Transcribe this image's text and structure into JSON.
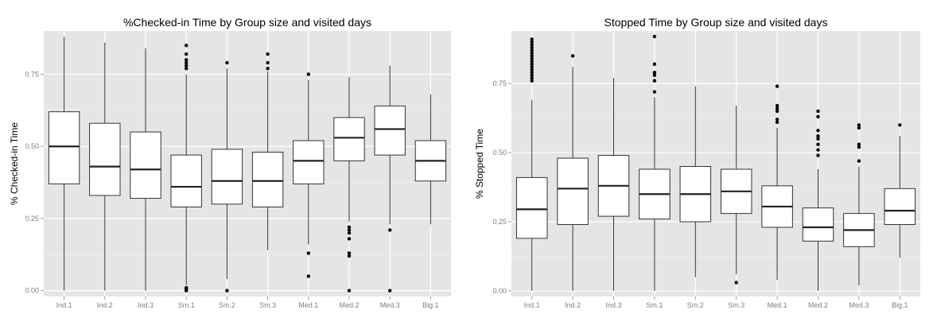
{
  "chart_data": [
    {
      "type": "box",
      "title": "%Checked-in Time by Group size and visited days",
      "xlabel": "",
      "ylabel": "% Checked-in Time",
      "ylim": [
        -0.02,
        0.9
      ],
      "yticks": [
        "0.00",
        "0.25",
        "0.50",
        "0.75"
      ],
      "yticks_values": [
        0,
        0.25,
        0.5,
        0.75
      ],
      "grid": true,
      "categories": [
        "Ind.1",
        "Ind.2",
        "Ind.3",
        "Sm.1",
        "Sm.2",
        "Sm.3",
        "Med.1",
        "Med.2",
        "Med.3",
        "Big.1"
      ],
      "boxes": [
        {
          "min": 0.0,
          "q1": 0.37,
          "median": 0.5,
          "q3": 0.62,
          "max": 0.88,
          "outliers": []
        },
        {
          "min": 0.0,
          "q1": 0.33,
          "median": 0.43,
          "q3": 0.58,
          "max": 0.86,
          "outliers": []
        },
        {
          "min": 0.0,
          "q1": 0.32,
          "median": 0.42,
          "q3": 0.55,
          "max": 0.84,
          "outliers": []
        },
        {
          "min": 0.02,
          "q1": 0.29,
          "median": 0.36,
          "q3": 0.47,
          "max": 0.75,
          "outliers": [
            0.0,
            0.005,
            0.01,
            0.77,
            0.78,
            0.79,
            0.8,
            0.82,
            0.85
          ]
        },
        {
          "min": 0.04,
          "q1": 0.3,
          "median": 0.38,
          "q3": 0.49,
          "max": 0.77,
          "outliers": [
            0.0,
            0.79
          ]
        },
        {
          "min": 0.14,
          "q1": 0.29,
          "median": 0.38,
          "q3": 0.48,
          "max": 0.76,
          "outliers": [
            0.77,
            0.79,
            0.82
          ]
        },
        {
          "min": 0.16,
          "q1": 0.37,
          "median": 0.45,
          "q3": 0.52,
          "max": 0.73,
          "outliers": [
            0.05,
            0.13,
            0.75
          ]
        },
        {
          "min": 0.24,
          "q1": 0.45,
          "median": 0.53,
          "q3": 0.6,
          "max": 0.74,
          "outliers": [
            0.0,
            0.12,
            0.13,
            0.18,
            0.2,
            0.21,
            0.22
          ]
        },
        {
          "min": 0.23,
          "q1": 0.47,
          "median": 0.56,
          "q3": 0.64,
          "max": 0.78,
          "outliers": [
            0.0,
            0.21
          ]
        },
        {
          "min": 0.23,
          "q1": 0.38,
          "median": 0.45,
          "q3": 0.52,
          "max": 0.68,
          "outliers": []
        }
      ]
    },
    {
      "type": "box",
      "title": "Stopped Time by Group size and visited days",
      "xlabel": "",
      "ylabel": "% Stopped Time",
      "ylim": [
        -0.02,
        0.94
      ],
      "yticks": [
        "0.00",
        "0.25",
        "0.50",
        "0.75"
      ],
      "yticks_values": [
        0,
        0.25,
        0.5,
        0.75
      ],
      "grid": true,
      "categories": [
        "Ind.1",
        "Ind.2",
        "Ind.3",
        "Sm.1",
        "Sm.2",
        "Sm.3",
        "Med.1",
        "Med.2",
        "Med.3",
        "Big.1"
      ],
      "boxes": [
        {
          "min": 0.0,
          "q1": 0.19,
          "median": 0.295,
          "q3": 0.41,
          "max": 0.69,
          "outliers": [
            0.76,
            0.77,
            0.78,
            0.79,
            0.8,
            0.81,
            0.82,
            0.83,
            0.84,
            0.85,
            0.86,
            0.87,
            0.88,
            0.89,
            0.9,
            0.91
          ]
        },
        {
          "min": 0.0,
          "q1": 0.24,
          "median": 0.37,
          "q3": 0.48,
          "max": 0.81,
          "outliers": [
            0.85
          ]
        },
        {
          "min": 0.0,
          "q1": 0.27,
          "median": 0.38,
          "q3": 0.49,
          "max": 0.77,
          "outliers": []
        },
        {
          "min": 0.0,
          "q1": 0.26,
          "median": 0.35,
          "q3": 0.44,
          "max": 0.7,
          "outliers": [
            0.72,
            0.76,
            0.78,
            0.79,
            0.82,
            0.92
          ]
        },
        {
          "min": 0.05,
          "q1": 0.25,
          "median": 0.35,
          "q3": 0.45,
          "max": 0.74,
          "outliers": []
        },
        {
          "min": 0.06,
          "q1": 0.28,
          "median": 0.36,
          "q3": 0.44,
          "max": 0.67,
          "outliers": [
            0.03
          ]
        },
        {
          "min": 0.04,
          "q1": 0.23,
          "median": 0.305,
          "q3": 0.38,
          "max": 0.59,
          "outliers": [
            0.61,
            0.62,
            0.65,
            0.66,
            0.67,
            0.74
          ]
        },
        {
          "min": 0.0,
          "q1": 0.18,
          "median": 0.23,
          "q3": 0.3,
          "max": 0.44,
          "outliers": [
            0.49,
            0.51,
            0.53,
            0.55,
            0.56,
            0.58,
            0.63,
            0.65
          ]
        },
        {
          "min": 0.02,
          "q1": 0.16,
          "median": 0.22,
          "q3": 0.28,
          "max": 0.45,
          "outliers": [
            0.47,
            0.52,
            0.53,
            0.59,
            0.6
          ]
        },
        {
          "min": 0.12,
          "q1": 0.24,
          "median": 0.29,
          "q3": 0.37,
          "max": 0.56,
          "outliers": [
            0.6
          ]
        }
      ]
    }
  ]
}
